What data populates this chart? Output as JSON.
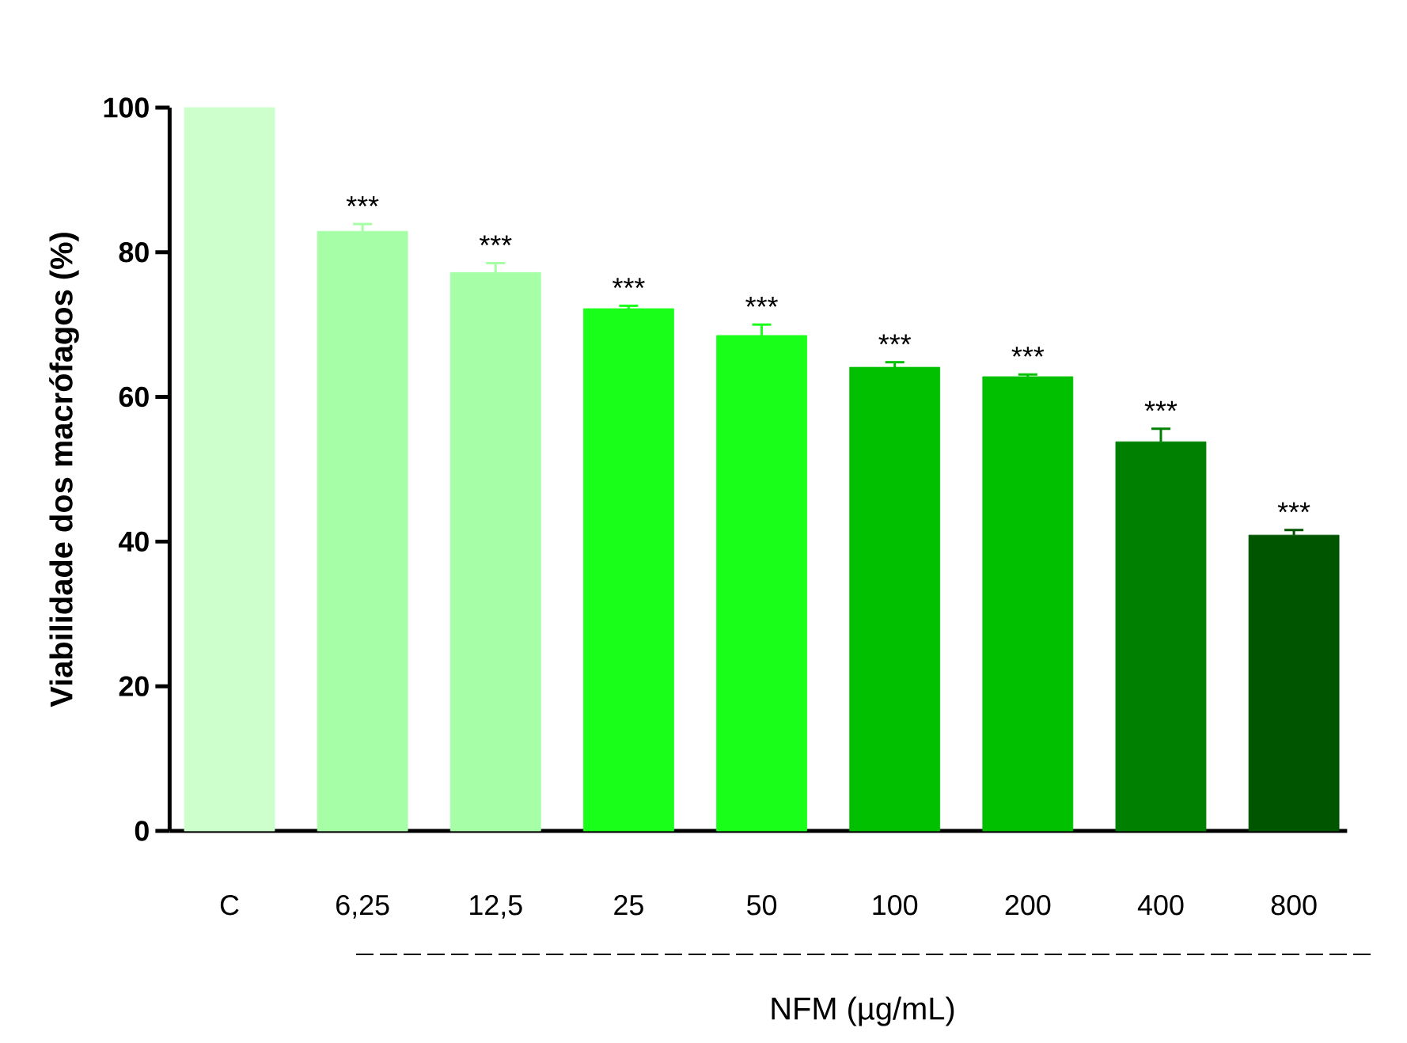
{
  "chart_data": {
    "type": "bar",
    "xlabel": "NFM   (µg/mL)",
    "ylabel": "Viabilidade dos macrófagos (%)",
    "categories": [
      "C",
      "6,25",
      "12,5",
      "25",
      "50",
      "100",
      "200",
      "400",
      "800"
    ],
    "values": [
      100,
      82.9,
      77.2,
      72.2,
      68.5,
      64.1,
      62.8,
      53.8,
      40.9
    ],
    "errors": [
      null,
      1.0,
      1.3,
      0.4,
      1.5,
      0.7,
      0.3,
      1.8,
      0.7
    ],
    "colors": [
      "#ccffcc",
      "#a6ffa6",
      "#a6ffa6",
      "#1aff1a",
      "#1aff1a",
      "#00c000",
      "#00c000",
      "#008000",
      "#005500"
    ],
    "ylim": [
      0,
      100
    ],
    "yticks": [
      0,
      20,
      40,
      60,
      80,
      100
    ],
    "annotations": [
      {
        "text": "***",
        "x": "6,25",
        "y": 82.9
      },
      {
        "text": "***",
        "x": "12,5",
        "y": 77.2
      },
      {
        "text": "***",
        "x": "25",
        "y": 72.2
      },
      {
        "text": "***",
        "x": "50",
        "y": 68.5
      },
      {
        "text": "***",
        "x": "100",
        "y": 64.1
      },
      {
        "text": "***",
        "x": "200",
        "y": 62.8
      },
      {
        "text": "***",
        "x": "400",
        "y": 53.8
      },
      {
        "text": "***",
        "x": "800",
        "y": 40.9
      }
    ]
  }
}
